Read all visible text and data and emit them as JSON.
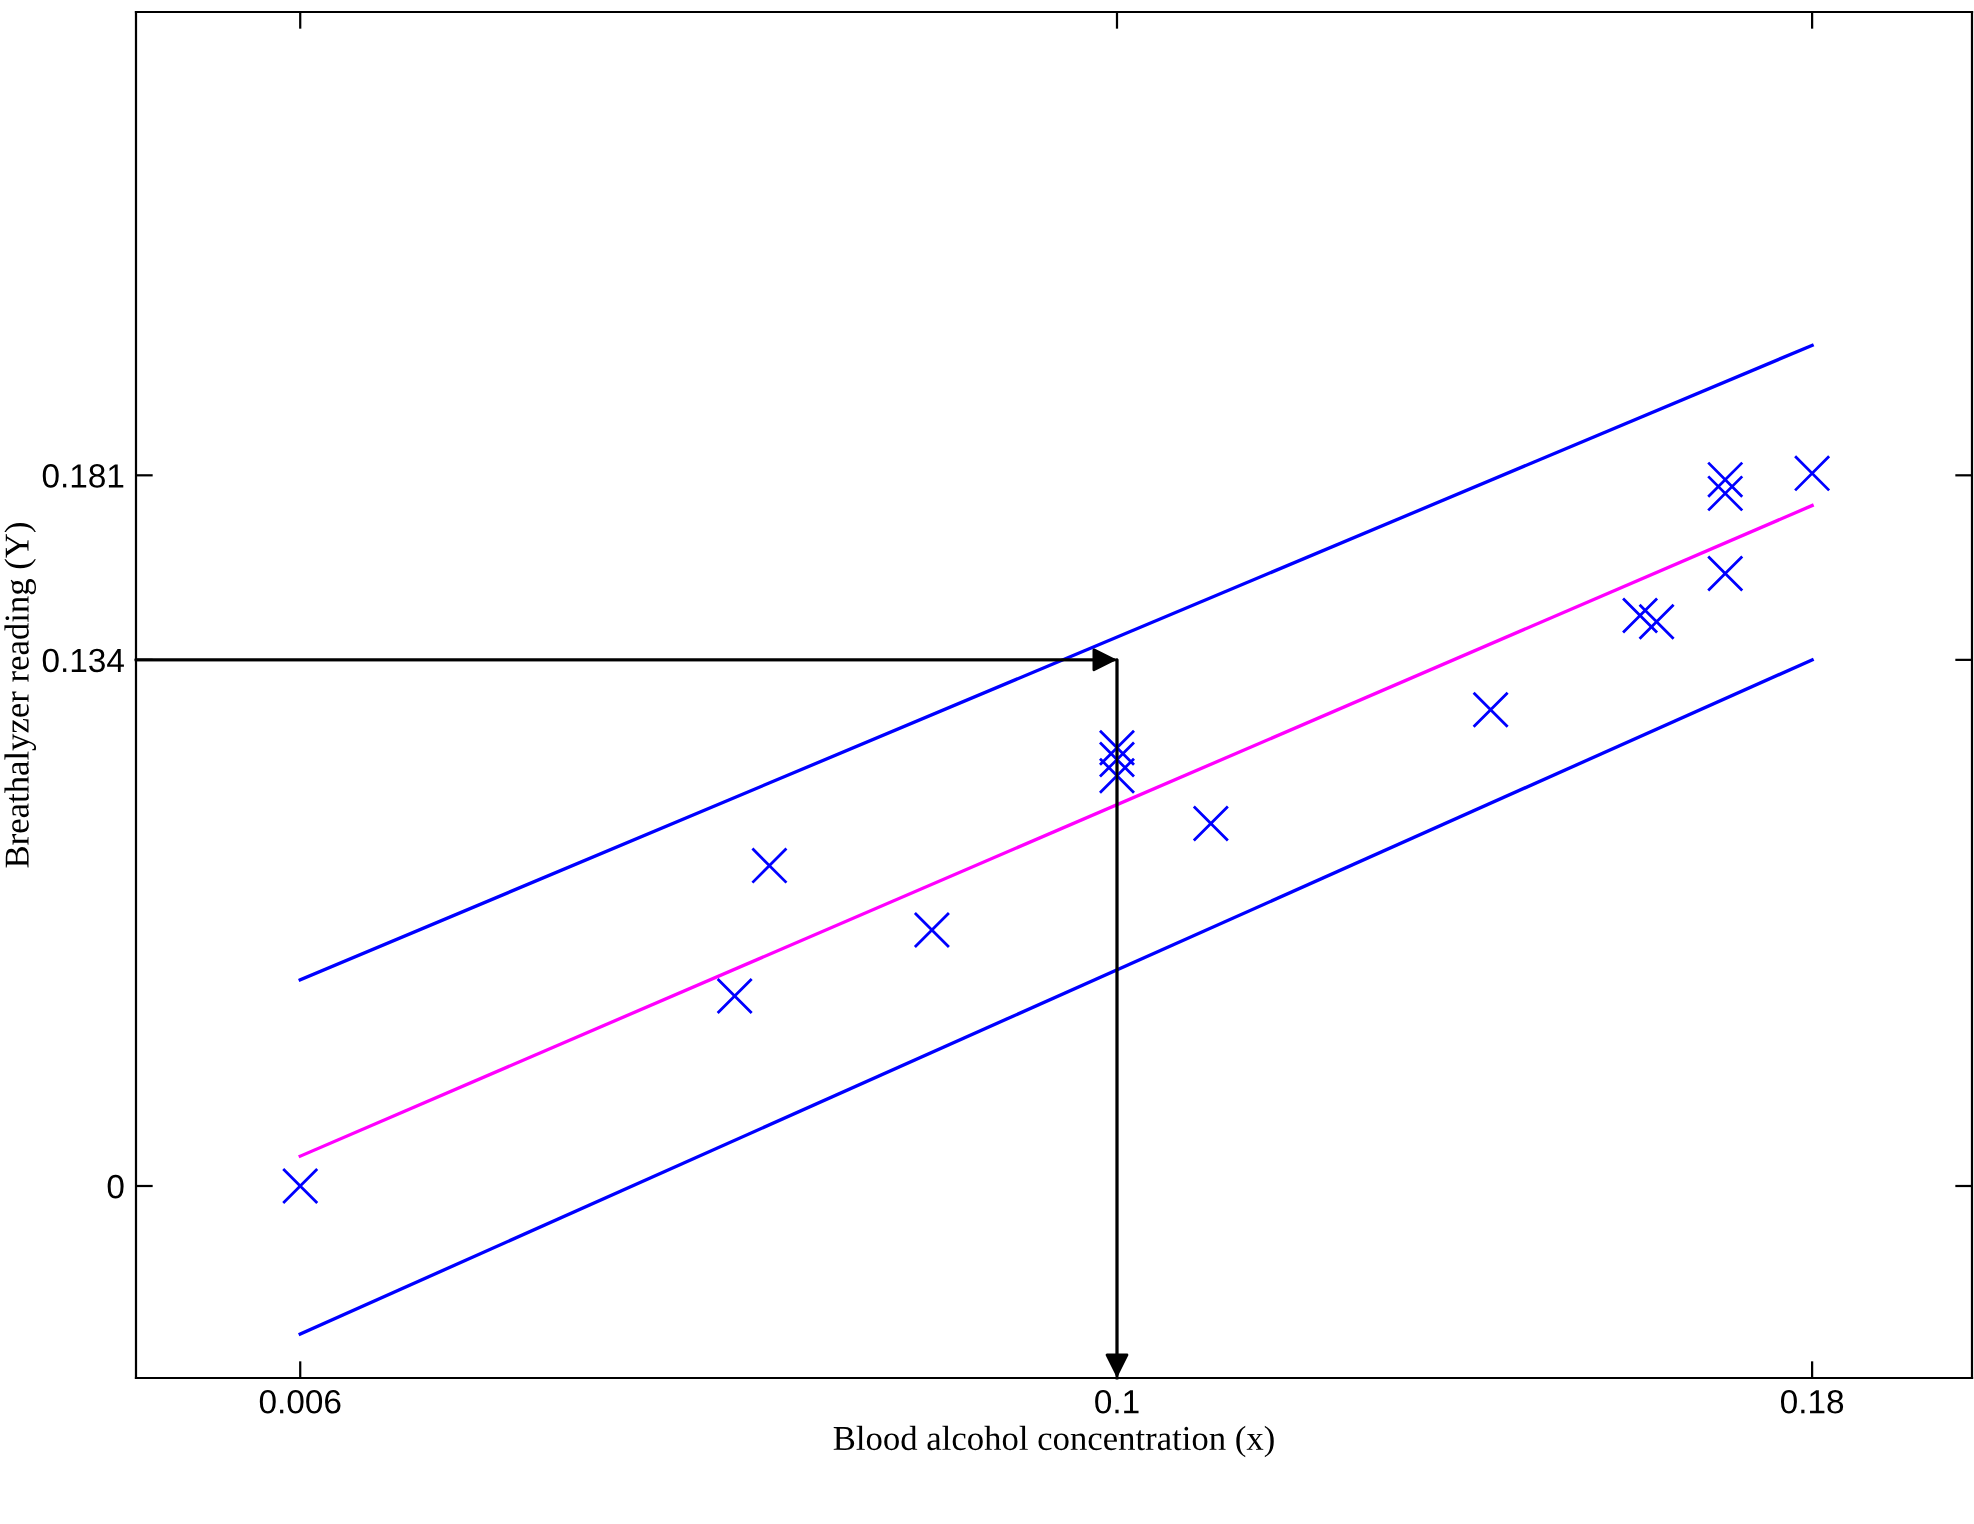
{
  "chart_data": {
    "type": "scatter",
    "xlabel": "Blood alcohol concentration (x)",
    "ylabel": "Breathalyzer reading (Y)",
    "xlim": [
      -0.0129,
      0.1984
    ],
    "ylim": [
      -0.0489,
      0.299
    ],
    "xticks": [
      0.006,
      0.1,
      0.18
    ],
    "yticks": [
      0,
      0.134,
      0.181
    ],
    "grid": false,
    "legend": false,
    "series": [
      {
        "marker": "cross",
        "color": "#0000ff",
        "x": [
          0.006,
          0.056,
          0.06,
          0.0787,
          0.1,
          0.1,
          0.1,
          0.1108,
          0.143,
          0.1602,
          0.1621,
          0.17,
          0.17,
          0.17,
          0.18
        ],
        "values": [
          0,
          0.0484,
          0.0816,
          0.0652,
          0.1116,
          0.1086,
          0.1045,
          0.0923,
          0.1213,
          0.1453,
          0.1437,
          0.156,
          0.1799,
          0.1764,
          0.1815
        ]
      },
      {
        "type": "line",
        "color": "#ff00ff",
        "x": [
          0.006,
          0.18
        ],
        "values": [
          0.0076,
          0.1733
        ]
      },
      {
        "type": "line",
        "color": "#0000ff",
        "x": [
          0.006,
          0.18
        ],
        "values": [
          0.0525,
          0.2141
        ]
      },
      {
        "type": "line",
        "color": "#0000ff",
        "x": [
          0.006,
          0.18
        ],
        "values": [
          -0.0377,
          0.134
        ]
      },
      {
        "type": "line",
        "color": "#000000",
        "x": [
          -0.0129,
          0.1,
          0.1
        ],
        "values": [
          0.134,
          0.134,
          -0.0489
        ]
      }
    ]
  }
}
